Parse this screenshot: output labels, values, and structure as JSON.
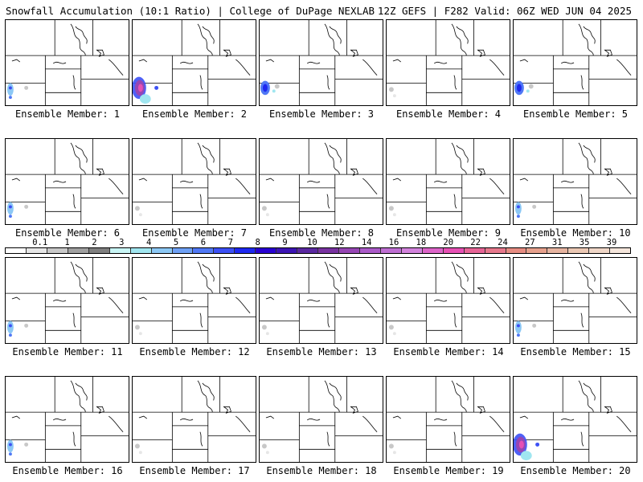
{
  "header": {
    "title_left": "Snowfall Accumulation (10:1 Ratio) | College of DuPage NEXLAB",
    "title_right": "12Z GEFS | F282 Valid: 06Z WED JUN 04 2025"
  },
  "members": [
    {
      "label": "Ensemble Member: 1",
      "snow": "light-sw"
    },
    {
      "label": "Ensemble Member: 2",
      "snow": "heavy-sw"
    },
    {
      "label": "Ensemble Member: 3",
      "snow": "moderate-sw"
    },
    {
      "label": "Ensemble Member: 4",
      "snow": "trace"
    },
    {
      "label": "Ensemble Member: 5",
      "snow": "moderate-sw"
    },
    {
      "label": "Ensemble Member: 6",
      "snow": "light-sw"
    },
    {
      "label": "Ensemble Member: 7",
      "snow": "trace"
    },
    {
      "label": "Ensemble Member: 8",
      "snow": "trace"
    },
    {
      "label": "Ensemble Member: 9",
      "snow": "trace"
    },
    {
      "label": "Ensemble Member: 10",
      "snow": "light-sw"
    },
    {
      "label": "Ensemble Member: 11",
      "snow": "light-sw"
    },
    {
      "label": "Ensemble Member: 12",
      "snow": "trace"
    },
    {
      "label": "Ensemble Member: 13",
      "snow": "trace"
    },
    {
      "label": "Ensemble Member: 14",
      "snow": "trace"
    },
    {
      "label": "Ensemble Member: 15",
      "snow": "light-sw"
    },
    {
      "label": "Ensemble Member: 16",
      "snow": "light-sw"
    },
    {
      "label": "Ensemble Member: 17",
      "snow": "trace"
    },
    {
      "label": "Ensemble Member: 18",
      "snow": "trace"
    },
    {
      "label": "Ensemble Member: 19",
      "snow": "trace"
    },
    {
      "label": "Ensemble Member: 20",
      "snow": "heavy-sw"
    }
  ],
  "colorbar": {
    "tick_labels": [
      "0.1",
      "1",
      "2",
      "3",
      "4",
      "5",
      "6",
      "7",
      "8",
      "9",
      "10",
      "12",
      "14",
      "16",
      "18",
      "20",
      "22",
      "24",
      "27",
      "31",
      "35",
      "39"
    ],
    "colors": [
      "#ffffff",
      "#e6e6e6",
      "#c8c8c8",
      "#a0a0a0",
      "#7f7f7f",
      "#c8f5f5",
      "#a0e6f0",
      "#8cc8f5",
      "#6ea0f5",
      "#5078f5",
      "#3c50f5",
      "#1e28f0",
      "#2800d2",
      "#3c14b4",
      "#5a28a0",
      "#7832a0",
      "#9646b4",
      "#aa5ac8",
      "#be6ed2",
      "#d282dc",
      "#dc64c8",
      "#e650b4",
      "#e66496",
      "#e6788c",
      "#e68c82",
      "#e6a08c",
      "#e6b4a0",
      "#ebc8b4",
      "#f0d7c8",
      "#f5e6dc"
    ]
  }
}
